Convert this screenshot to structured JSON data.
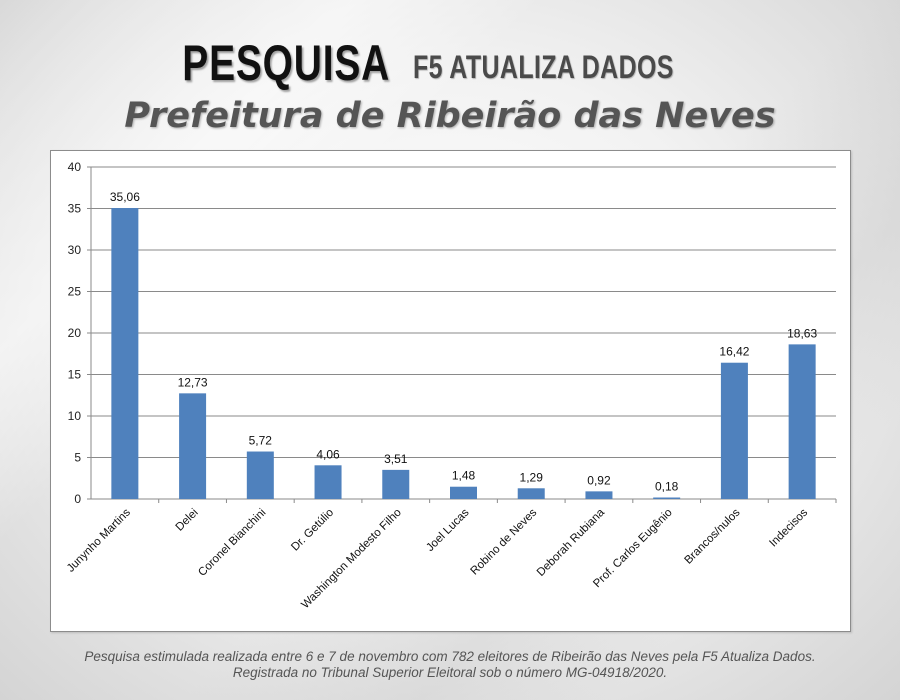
{
  "header": {
    "title": "PESQUISA",
    "brand": "F5 ATUALIZA DADOS",
    "subtitle": "Prefeitura de Ribeirão das Neves"
  },
  "footer": {
    "line1": "Pesquisa estimulada realizada entre 6 e 7 de novembro com 782 eleitores de Ribeirão das Neves pela F5 Atualiza Dados.",
    "line2": "Registrada no Tribunal Superior Eleitoral sob o número MG-04918/2020."
  },
  "chart_data": {
    "type": "bar",
    "categories": [
      "Junynho Martins",
      "Delei",
      "Coronel Bianchini",
      "Dr. Getúlio",
      "Washington Modesto Filho",
      "Joel Lucas",
      "Robino de Neves",
      "Deborah Rubiana",
      "Prof. Carlos Eugênio",
      "Brancos/nulos",
      "Indecisos"
    ],
    "values": [
      35.06,
      12.73,
      5.72,
      4.06,
      3.51,
      1.48,
      1.29,
      0.92,
      0.18,
      16.42,
      18.63
    ],
    "value_labels": [
      "35,06",
      "12,73",
      "5,72",
      "4,06",
      "3,51",
      "1,48",
      "1,29",
      "0,92",
      "0,18",
      "16,42",
      "18,63"
    ],
    "ylim": [
      0,
      40
    ],
    "yticks": [
      0,
      5,
      10,
      15,
      20,
      25,
      30,
      35,
      40
    ],
    "grid": true,
    "bar_color": "#4f81bd"
  }
}
